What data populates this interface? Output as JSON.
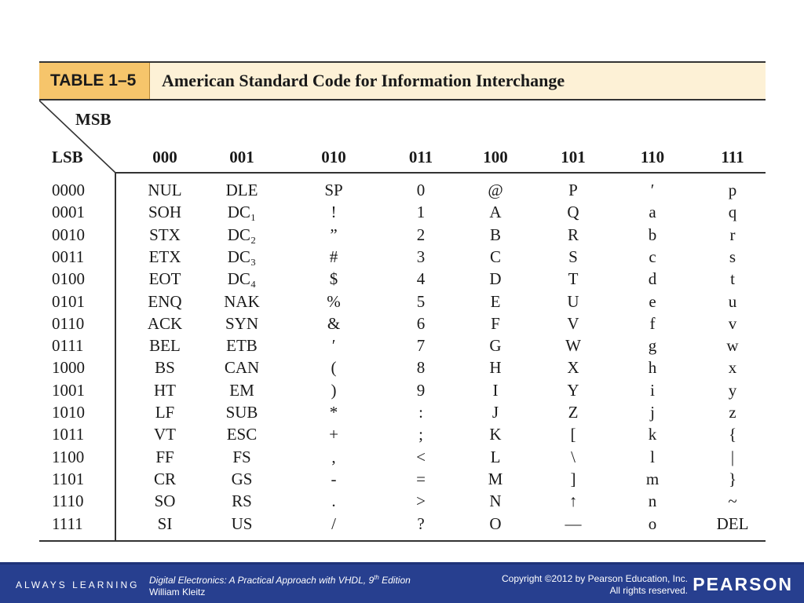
{
  "table": {
    "label": "TABLE 1–5",
    "title": "American Standard Code for Information Interchange",
    "msb_label": "MSB",
    "lsb_label": "LSB",
    "columns": [
      "000",
      "001",
      "010",
      "011",
      "100",
      "101",
      "110",
      "111"
    ],
    "rows": [
      {
        "lsb": "0000",
        "cells": [
          "NUL",
          "DLE",
          "SP",
          "0",
          "@",
          "P",
          "′",
          "p"
        ]
      },
      {
        "lsb": "0001",
        "cells": [
          "SOH",
          "DC₁",
          "!",
          "1",
          "A",
          "Q",
          "a",
          "q"
        ]
      },
      {
        "lsb": "0010",
        "cells": [
          "STX",
          "DC₂",
          "”",
          "2",
          "B",
          "R",
          "b",
          "r"
        ]
      },
      {
        "lsb": "0011",
        "cells": [
          "ETX",
          "DC₃",
          "#",
          "3",
          "C",
          "S",
          "c",
          "s"
        ]
      },
      {
        "lsb": "0100",
        "cells": [
          "EOT",
          "DC₄",
          "$",
          "4",
          "D",
          "T",
          "d",
          "t"
        ]
      },
      {
        "lsb": "0101",
        "cells": [
          "ENQ",
          "NAK",
          "%",
          "5",
          "E",
          "U",
          "e",
          "u"
        ]
      },
      {
        "lsb": "0110",
        "cells": [
          "ACK",
          "SYN",
          "&",
          "6",
          "F",
          "V",
          "f",
          "v"
        ]
      },
      {
        "lsb": "0111",
        "cells": [
          "BEL",
          "ETB",
          "′",
          "7",
          "G",
          "W",
          "g",
          "w"
        ]
      },
      {
        "lsb": "1000",
        "cells": [
          "BS",
          "CAN",
          "(",
          "8",
          "H",
          "X",
          "h",
          "x"
        ]
      },
      {
        "lsb": "1001",
        "cells": [
          "HT",
          "EM",
          ")",
          "9",
          "I",
          "Y",
          "i",
          "y"
        ]
      },
      {
        "lsb": "1010",
        "cells": [
          "LF",
          "SUB",
          "*",
          ":",
          "J",
          "Z",
          "j",
          "z"
        ]
      },
      {
        "lsb": "1011",
        "cells": [
          "VT",
          "ESC",
          "+",
          ";",
          "K",
          "[",
          "k",
          "{"
        ]
      },
      {
        "lsb": "1100",
        "cells": [
          "FF",
          "FS",
          ",",
          "<",
          "L",
          "\\",
          "l",
          "|"
        ]
      },
      {
        "lsb": "1101",
        "cells": [
          "CR",
          "GS",
          "-",
          "=",
          "M",
          "]",
          "m",
          "}"
        ]
      },
      {
        "lsb": "1110",
        "cells": [
          "SO",
          "RS",
          ".",
          ">",
          "N",
          "↑",
          "n",
          "~"
        ]
      },
      {
        "lsb": "1111",
        "cells": [
          "SI",
          "US",
          "/",
          "?",
          "O",
          "—",
          "o",
          "DEL"
        ]
      }
    ]
  },
  "footer": {
    "tagline": "ALWAYS LEARNING",
    "book_title": "Digital Electronics: A Practical Approach with VHDL, 9",
    "book_title_sup": "th",
    "book_title_end": " Edition",
    "author": "William Kleitz",
    "copyright_line1": "Copyright ©2012 by Pearson Education, Inc.",
    "copyright_line2": "All rights reserved.",
    "brand": "PEARSON"
  },
  "colors": {
    "title_label_bg": "#f6c56b",
    "title_bg": "#fdf1d6",
    "footer_bg": "#273f8f"
  }
}
